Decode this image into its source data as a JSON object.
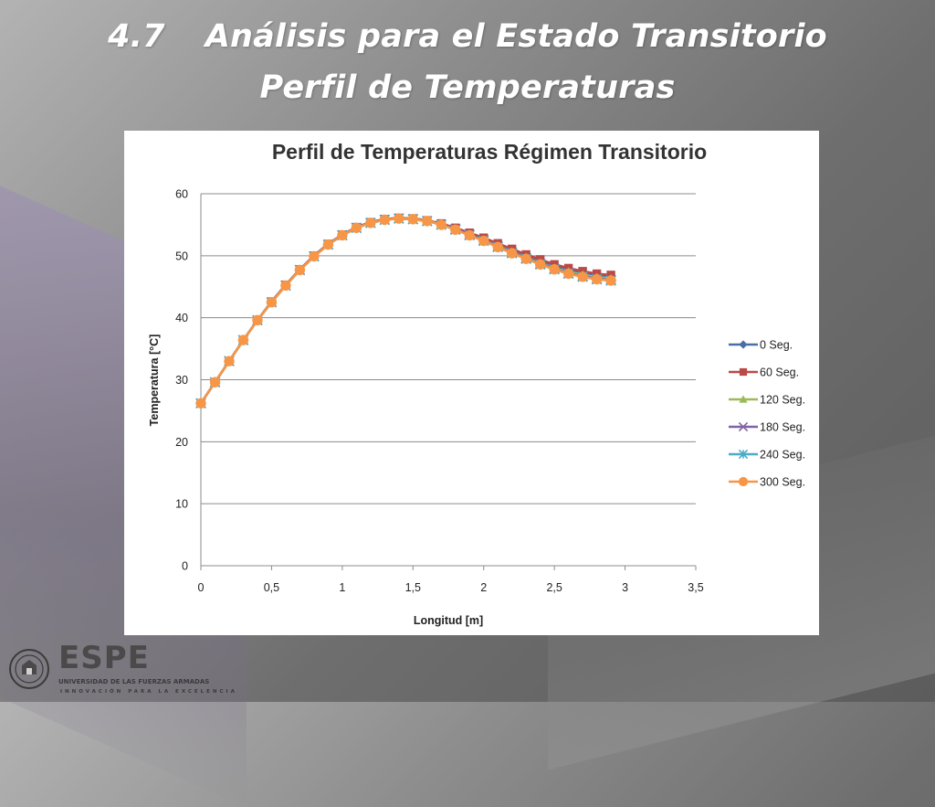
{
  "slide": {
    "title_number": "4.7",
    "title_text": "Análisis para el Estado Transitorio",
    "subtitle": "Perfil de Temperaturas"
  },
  "logo": {
    "word": "ESPE",
    "line1": "UNIVERSIDAD DE LAS FUERZAS ARMADAS",
    "line2": "INNOVACIÓN PARA LA EXCELENCIA"
  },
  "colors": {
    "series": [
      "#4a6fa5",
      "#b94a48",
      "#9bbb59",
      "#8064a2",
      "#4bacc6",
      "#f79646"
    ]
  },
  "chart_data": {
    "type": "line",
    "title": "Perfil de Temperaturas Régimen Transitorio",
    "xlabel": "Longitud [m]",
    "ylabel": "Temperatura [°C]",
    "xlim": [
      0,
      3.5
    ],
    "ylim": [
      0,
      60
    ],
    "xticks": [
      "0",
      "0,5",
      "1",
      "1,5",
      "2",
      "2,5",
      "3",
      "3,5"
    ],
    "yticks": [
      "0",
      "10",
      "20",
      "30",
      "40",
      "50",
      "60"
    ],
    "grid": true,
    "legend_position": "right",
    "x": [
      0,
      0.1,
      0.2,
      0.3,
      0.4,
      0.5,
      0.6,
      0.7,
      0.8,
      0.9,
      1.0,
      1.1,
      1.2,
      1.3,
      1.4,
      1.5,
      1.6,
      1.7,
      1.8,
      1.9,
      2.0,
      2.1,
      2.2,
      2.3,
      2.4,
      2.5,
      2.6,
      2.7,
      2.8,
      2.9
    ],
    "series": [
      {
        "name": "0 Seg.",
        "marker": "diamond",
        "values": [
          26.2,
          29.6,
          33.0,
          36.4,
          39.6,
          42.6,
          45.3,
          47.8,
          50.0,
          51.9,
          53.4,
          54.6,
          55.4,
          55.9,
          56.1,
          56.0,
          55.7,
          55.1,
          54.4,
          53.6,
          52.7,
          51.8,
          50.9,
          50.0,
          49.2,
          48.4,
          47.8,
          47.3,
          46.9,
          46.7
        ]
      },
      {
        "name": "60 Seg.",
        "marker": "square",
        "values": [
          26.2,
          29.6,
          33.0,
          36.4,
          39.6,
          42.6,
          45.3,
          47.8,
          50.0,
          51.9,
          53.4,
          54.6,
          55.4,
          55.9,
          56.1,
          56.0,
          55.7,
          55.2,
          54.5,
          53.7,
          52.9,
          52.0,
          51.1,
          50.2,
          49.4,
          48.6,
          48.0,
          47.5,
          47.1,
          46.9
        ]
      },
      {
        "name": "120 Seg.",
        "marker": "triangle",
        "values": [
          26.2,
          29.6,
          33.0,
          36.4,
          39.6,
          42.5,
          45.2,
          47.7,
          49.9,
          51.8,
          53.3,
          54.5,
          55.3,
          55.8,
          56.0,
          55.9,
          55.6,
          55.0,
          54.3,
          53.4,
          52.5,
          51.6,
          50.6,
          49.7,
          48.8,
          48.0,
          47.4,
          46.9,
          46.5,
          46.3
        ]
      },
      {
        "name": "180 Seg.",
        "marker": "x",
        "values": [
          26.2,
          29.6,
          33.0,
          36.4,
          39.6,
          42.5,
          45.2,
          47.7,
          49.9,
          51.8,
          53.3,
          54.5,
          55.3,
          55.8,
          56.0,
          55.9,
          55.6,
          55.0,
          54.3,
          53.4,
          52.5,
          51.5,
          50.5,
          49.6,
          48.7,
          47.9,
          47.2,
          46.7,
          46.3,
          46.1
        ]
      },
      {
        "name": "240 Seg.",
        "marker": "star",
        "values": [
          26.2,
          29.6,
          33.0,
          36.4,
          39.6,
          42.5,
          45.2,
          47.7,
          49.9,
          51.8,
          53.3,
          54.5,
          55.3,
          55.8,
          56.0,
          55.9,
          55.6,
          55.0,
          54.2,
          53.3,
          52.4,
          51.4,
          50.4,
          49.5,
          48.6,
          47.8,
          47.1,
          46.6,
          46.2,
          46.0
        ]
      },
      {
        "name": "300 Seg.",
        "marker": "circle",
        "values": [
          26.2,
          29.6,
          33.0,
          36.4,
          39.6,
          42.5,
          45.2,
          47.7,
          49.9,
          51.8,
          53.3,
          54.5,
          55.3,
          55.8,
          56.0,
          55.9,
          55.6,
          55.0,
          54.2,
          53.3,
          52.4,
          51.4,
          50.4,
          49.5,
          48.6,
          47.8,
          47.1,
          46.6,
          46.2,
          46.0
        ]
      }
    ]
  }
}
